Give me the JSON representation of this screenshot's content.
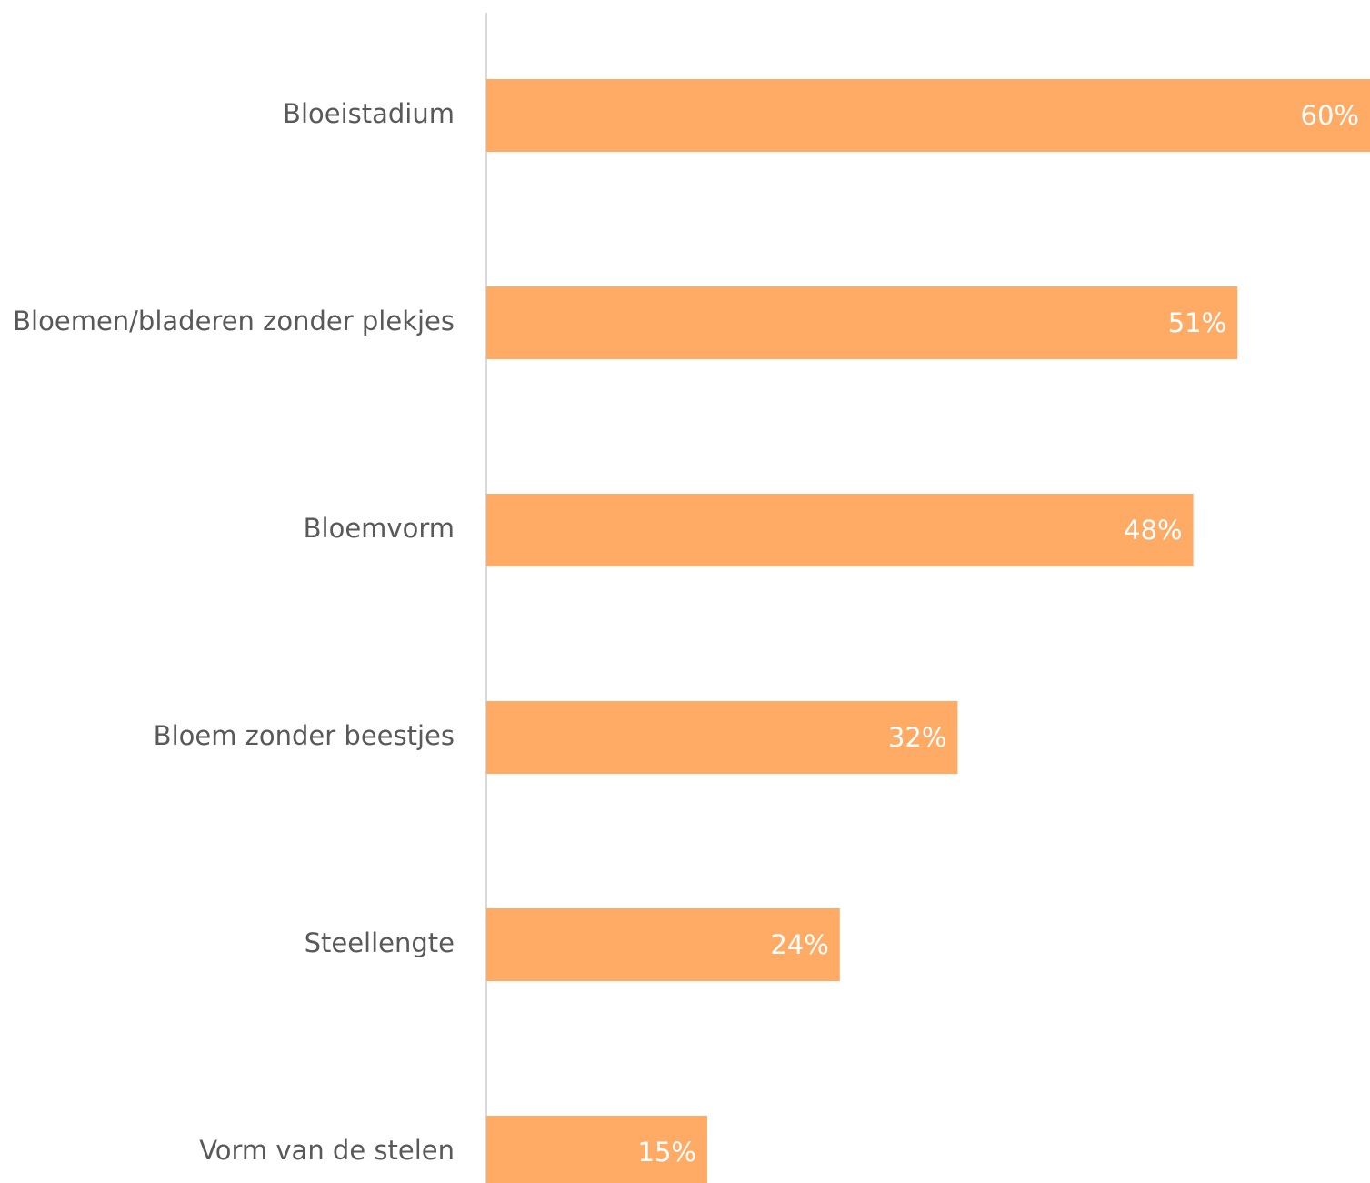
{
  "chart_data": {
    "type": "bar",
    "orientation": "horizontal",
    "categories": [
      "Bloeistadium",
      "Bloemen/bladeren zonder plekjes",
      "Bloemvorm",
      "Bloem zonder beestjes",
      "Steellengte",
      "Vorm van de stelen"
    ],
    "values": [
      60,
      51,
      48,
      32,
      24,
      15
    ],
    "value_labels": [
      "60%",
      "51%",
      "48%",
      "32%",
      "24%",
      "15%"
    ],
    "xlim": [
      0,
      60
    ],
    "grid": false,
    "legend": "none",
    "colors": {
      "bar": "#FFAB66",
      "axis": "#D9D9D9",
      "category_text": "#595959",
      "value_text": "#FFFFFF"
    }
  }
}
